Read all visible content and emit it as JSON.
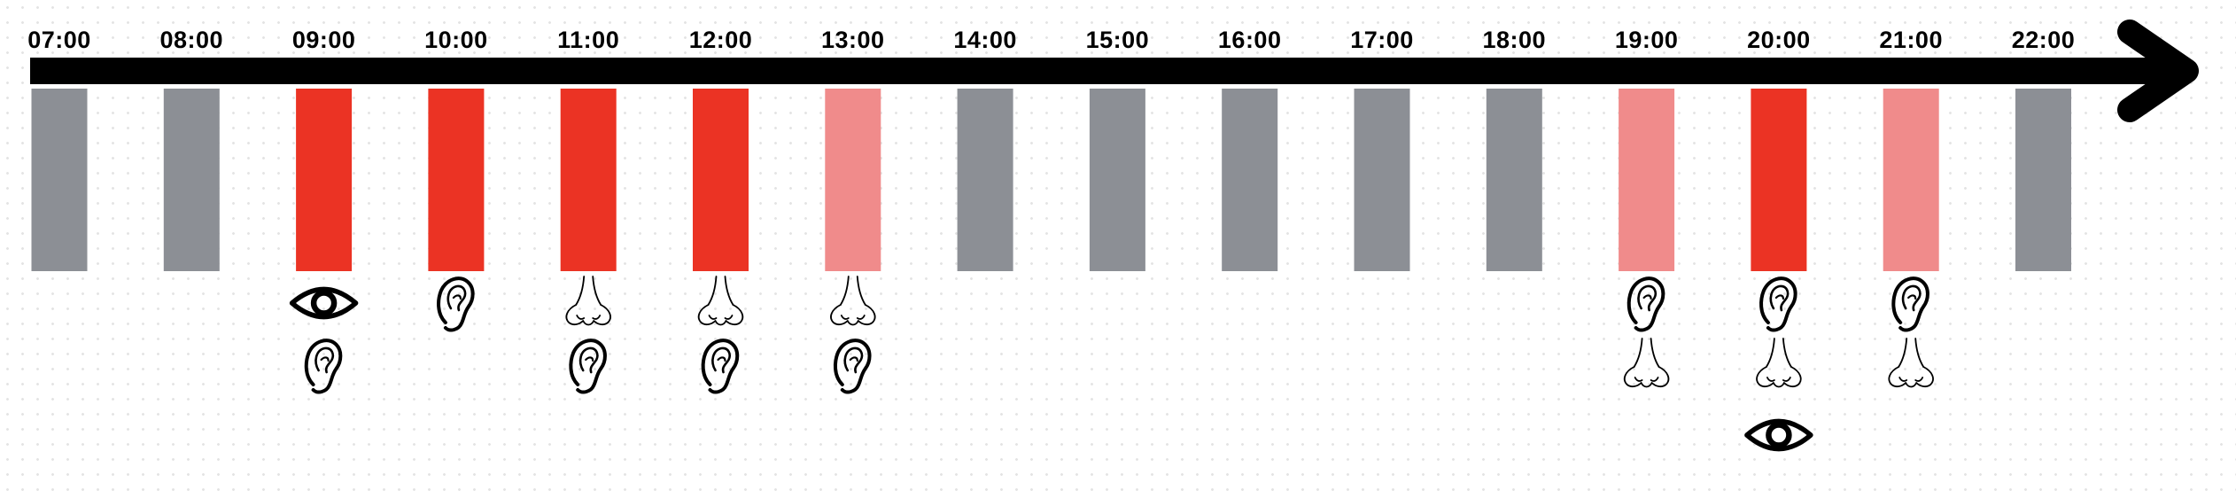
{
  "colors": {
    "background": "#ffffff",
    "arrow": "#000000",
    "level_off": "#8c8f95",
    "level_high": "#eb3324",
    "level_medium": "#f08b8b"
  },
  "timeline": {
    "slots": [
      {
        "hour": "07:00",
        "level": "off",
        "senses": []
      },
      {
        "hour": "08:00",
        "level": "off",
        "senses": []
      },
      {
        "hour": "09:00",
        "level": "high",
        "senses": [
          "eye-icon",
          "ear-icon"
        ]
      },
      {
        "hour": "10:00",
        "level": "high",
        "senses": [
          "ear-icon"
        ]
      },
      {
        "hour": "11:00",
        "level": "high",
        "senses": [
          "nose-icon",
          "ear-icon"
        ]
      },
      {
        "hour": "12:00",
        "level": "high",
        "senses": [
          "nose-icon",
          "ear-icon"
        ]
      },
      {
        "hour": "13:00",
        "level": "medium",
        "senses": [
          "nose-icon",
          "ear-icon"
        ]
      },
      {
        "hour": "14:00",
        "level": "off",
        "senses": []
      },
      {
        "hour": "15:00",
        "level": "off",
        "senses": []
      },
      {
        "hour": "16:00",
        "level": "off",
        "senses": []
      },
      {
        "hour": "17:00",
        "level": "off",
        "senses": []
      },
      {
        "hour": "18:00",
        "level": "off",
        "senses": []
      },
      {
        "hour": "19:00",
        "level": "medium",
        "senses": [
          "ear-icon",
          "nose-icon"
        ]
      },
      {
        "hour": "20:00",
        "level": "high",
        "senses": [
          "ear-icon",
          "nose-icon",
          "eye-icon"
        ]
      },
      {
        "hour": "21:00",
        "level": "medium",
        "senses": [
          "ear-icon",
          "nose-icon"
        ]
      },
      {
        "hour": "22:00",
        "level": "off",
        "senses": []
      }
    ]
  }
}
